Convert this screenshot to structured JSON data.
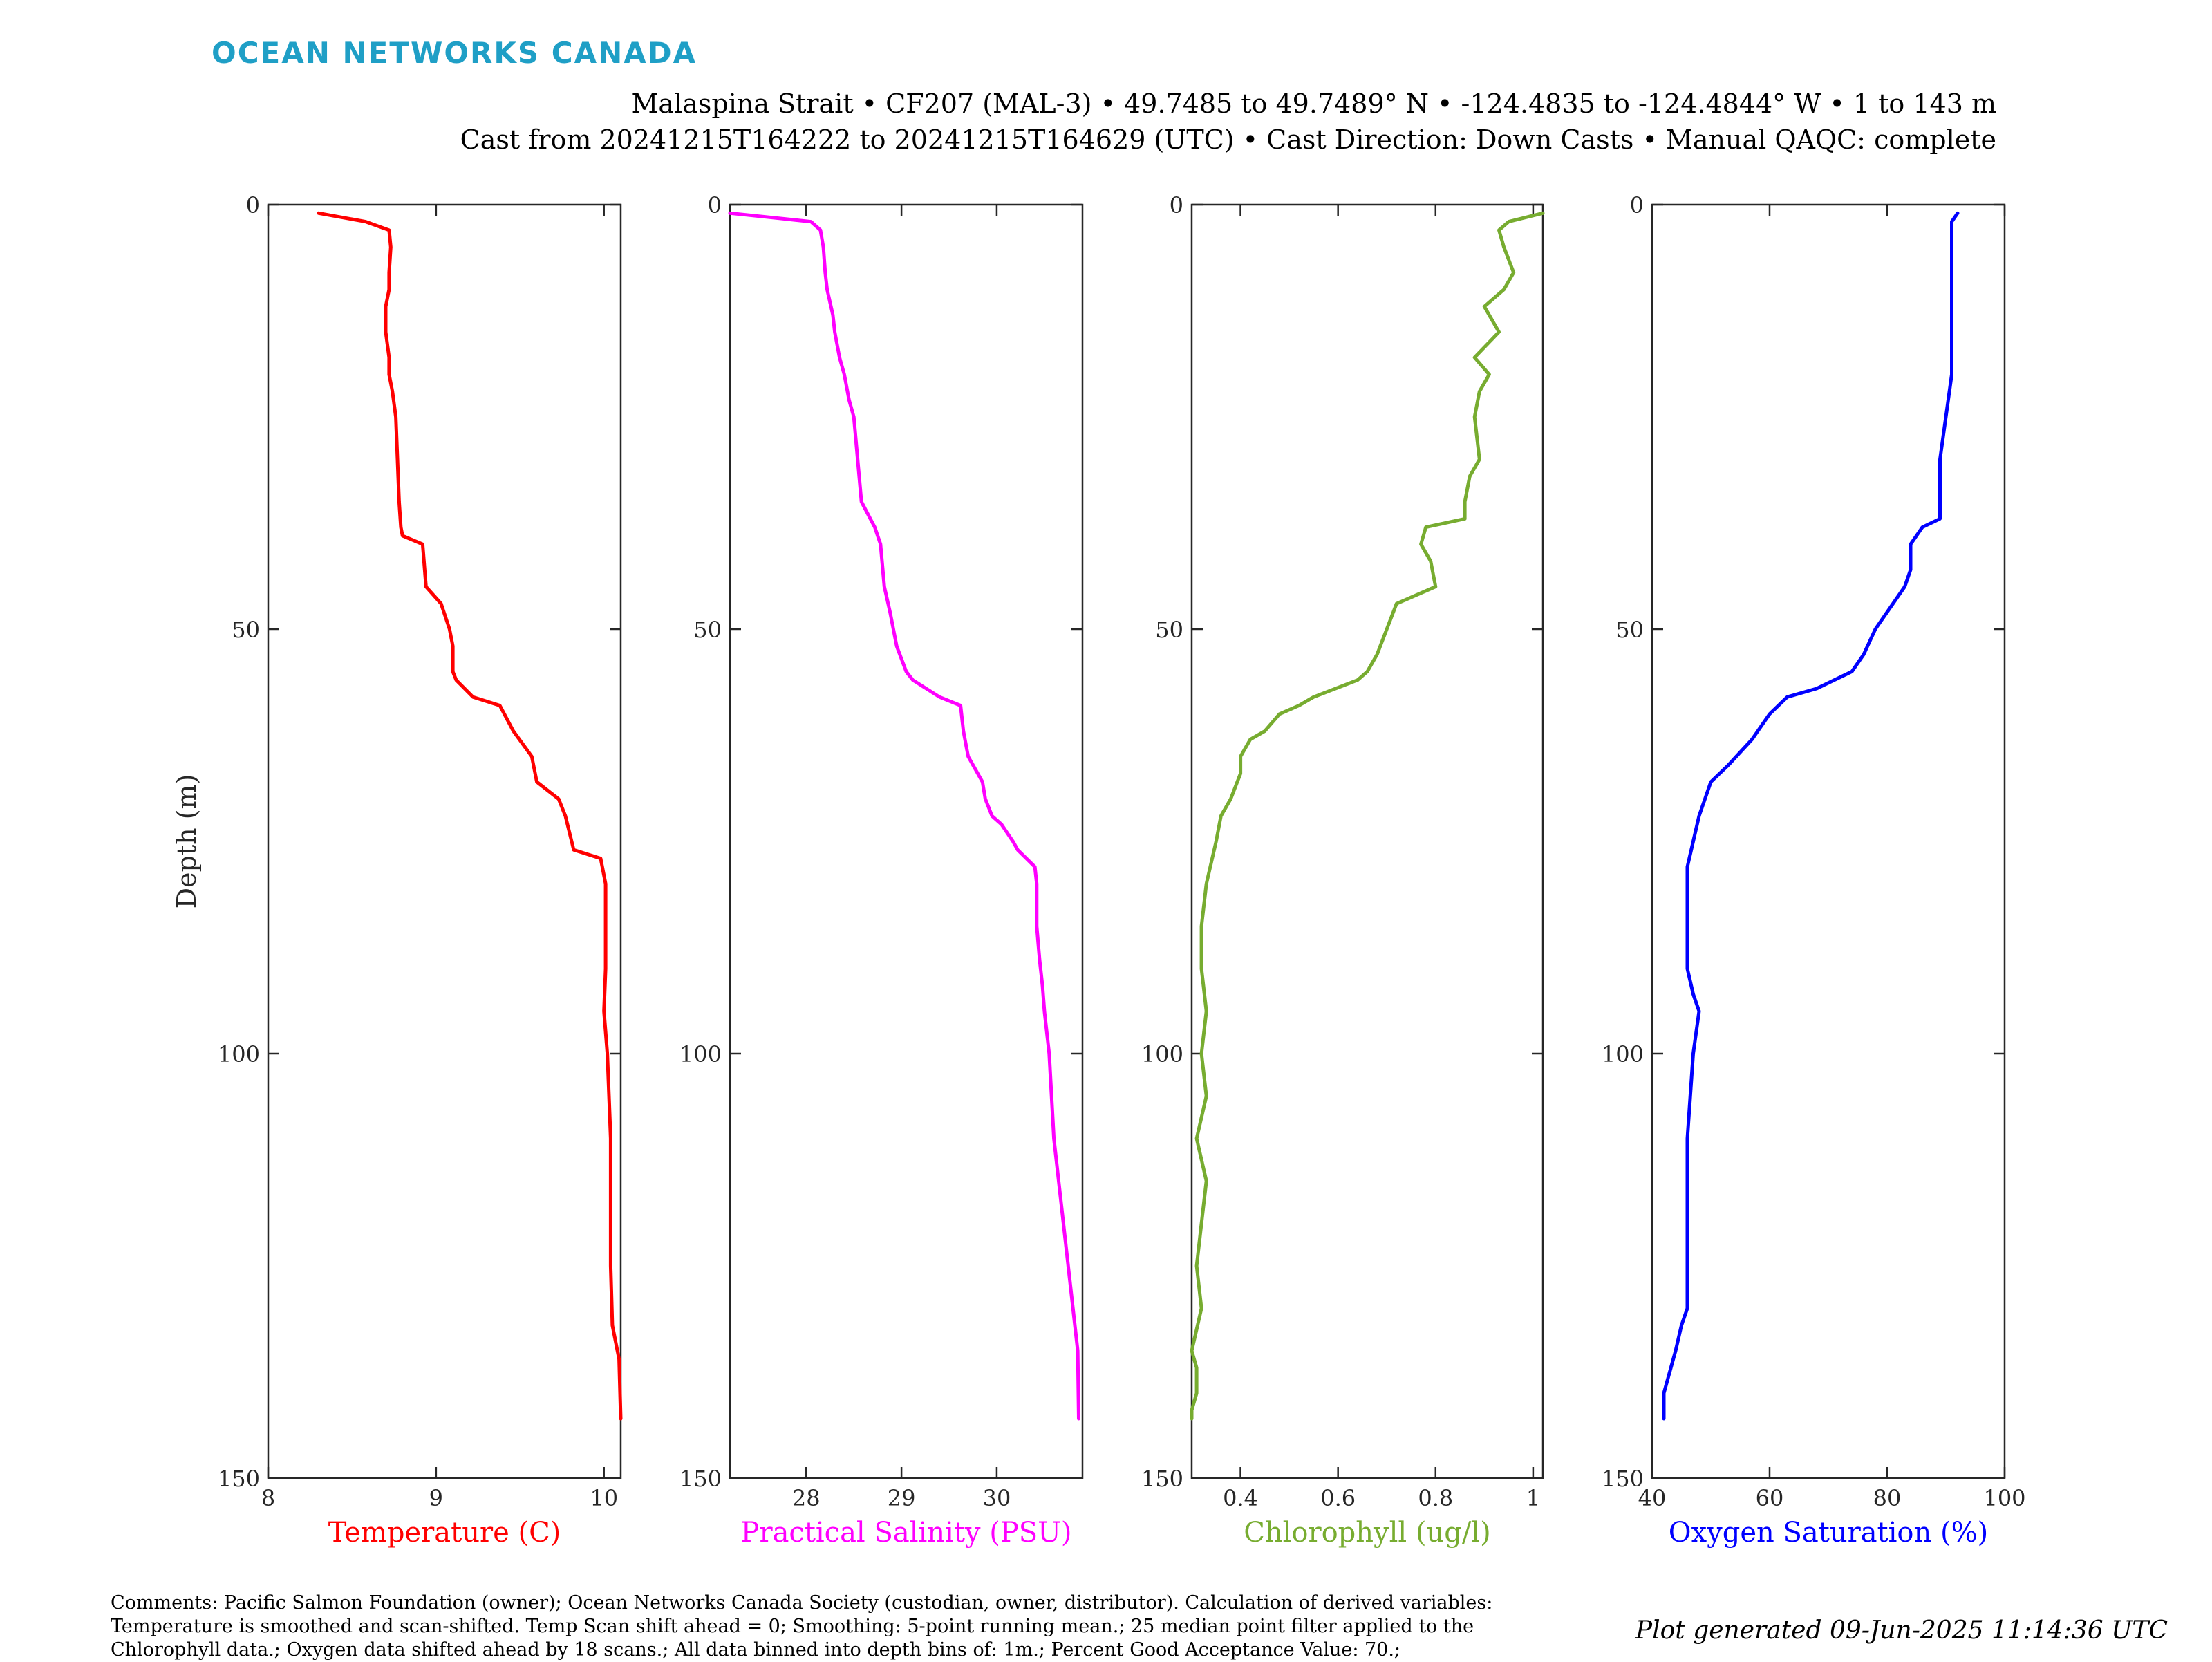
{
  "header": {
    "logo": "OCEAN NETWORKS CANADA",
    "line1": "Malaspina Strait • CF207 (MAL-3) • 49.7485 to 49.7489° N • -124.4835 to -124.4844° W • 1 to 143 m",
    "line2": "Cast from 20241215T164222 to 20241215T164629 (UTC) • Cast Direction: Down Casts • Manual QAQC: complete"
  },
  "footer": {
    "comments": "Comments: Pacific Salmon Foundation (owner); Ocean Networks Canada Society (custodian, owner, distributor). Calculation of derived variables: Temperature is smoothed and scan-shifted. Temp Scan shift ahead = 0; Smoothing: 5-point running mean.; 25 median point filter applied to the Chlorophyll data.; Oxygen data shifted ahead by 18 scans.; All data binned into depth bins of: 1m.; Percent Good Acceptance Value: 70.;",
    "generated": "Plot generated 09-Jun-2025 11:14:36 UTC"
  },
  "chart_data": [
    {
      "type": "line",
      "ylabel": "Depth (m)",
      "xlabel": "Temperature (C)",
      "color": "#ff0000",
      "xlim": [
        8,
        10.1
      ],
      "ylim": [
        0,
        150
      ],
      "y_reversed": true,
      "xticks": [
        8,
        9,
        10
      ],
      "yticks": [
        0,
        50,
        100,
        150
      ],
      "series": [
        {
          "x": [
            8.3,
            8.58,
            8.72,
            8.73,
            8.72,
            8.72,
            8.7,
            8.7,
            8.72,
            8.72,
            8.74,
            8.76,
            8.77,
            8.78,
            8.79,
            8.8,
            8.92,
            8.94,
            9.03,
            9.08,
            9.1,
            9.1,
            9.12,
            9.22,
            9.38,
            9.46,
            9.57,
            9.6,
            9.73,
            9.77,
            9.82,
            9.98,
            10.01,
            10.01,
            10.01,
            10.0,
            10.02,
            10.03,
            10.04,
            10.04,
            10.04,
            10.04,
            10.05,
            10.09,
            10.1
          ],
          "y": [
            1,
            2,
            3,
            5,
            8,
            10,
            12,
            15,
            18,
            20,
            22,
            25,
            30,
            35,
            38,
            39,
            40,
            45,
            47,
            50,
            52,
            55,
            56,
            58,
            59,
            62,
            65,
            68,
            70,
            72,
            76,
            77,
            80,
            85,
            90,
            95,
            100,
            105,
            110,
            115,
            120,
            125,
            132,
            136,
            143
          ]
        }
      ]
    },
    {
      "type": "line",
      "xlabel": "Practical Salinity (PSU)",
      "color": "#ff00ff",
      "xlim": [
        27.2,
        30.9
      ],
      "ylim": [
        0,
        150
      ],
      "y_reversed": true,
      "xticks": [
        28,
        29,
        30
      ],
      "yticks": [
        0,
        50,
        100,
        150
      ],
      "series": [
        {
          "x": [
            27.2,
            28.05,
            28.15,
            28.18,
            28.2,
            28.22,
            28.28,
            28.3,
            28.35,
            28.4,
            28.45,
            28.5,
            28.58,
            28.72,
            28.78,
            28.82,
            28.88,
            28.95,
            29.05,
            29.12,
            29.4,
            29.62,
            29.65,
            29.7,
            29.85,
            29.88,
            29.95,
            30.05,
            30.17,
            30.22,
            30.4,
            30.42,
            30.42,
            30.45,
            30.48,
            30.5,
            30.55,
            30.6,
            30.7,
            30.85,
            30.86
          ],
          "y": [
            1,
            2,
            3,
            5,
            8,
            10,
            13,
            15,
            18,
            20,
            23,
            25,
            35,
            38,
            40,
            45,
            48,
            52,
            55,
            56,
            58,
            59,
            62,
            65,
            68,
            70,
            72,
            73,
            75,
            76,
            78,
            80,
            85,
            89,
            92,
            95,
            100,
            110,
            120,
            135,
            143
          ]
        }
      ]
    },
    {
      "type": "line",
      "xlabel": "Chlorophyll (ug/l)",
      "color": "#77ac30",
      "xlim": [
        0.3,
        1.02
      ],
      "ylim": [
        0,
        150
      ],
      "y_reversed": true,
      "xticks": [
        0.4,
        0.6,
        0.8,
        1
      ],
      "yticks": [
        0,
        50,
        100,
        150
      ],
      "series": [
        {
          "x": [
            1.02,
            0.95,
            0.93,
            0.94,
            0.96,
            0.94,
            0.9,
            0.93,
            0.88,
            0.91,
            0.89,
            0.88,
            0.89,
            0.87,
            0.86,
            0.86,
            0.78,
            0.77,
            0.79,
            0.8,
            0.72,
            0.7,
            0.68,
            0.66,
            0.64,
            0.55,
            0.52,
            0.48,
            0.45,
            0.42,
            0.4,
            0.4,
            0.38,
            0.36,
            0.35,
            0.33,
            0.32,
            0.32,
            0.33,
            0.32,
            0.33,
            0.31,
            0.33,
            0.32,
            0.31,
            0.32,
            0.3,
            0.31,
            0.31,
            0.3,
            0.3
          ],
          "y": [
            1,
            2,
            3,
            5,
            8,
            10,
            12,
            15,
            18,
            20,
            22,
            25,
            30,
            32,
            35,
            37,
            38,
            40,
            42,
            45,
            47,
            50,
            53,
            55,
            56,
            58,
            59,
            60,
            62,
            63,
            65,
            67,
            70,
            72,
            75,
            80,
            85,
            90,
            95,
            100,
            105,
            110,
            115,
            120,
            125,
            130,
            135,
            137,
            140,
            142,
            143
          ]
        }
      ]
    },
    {
      "type": "line",
      "xlabel": "Oxygen Saturation (%)",
      "color": "#0000ff",
      "xlim": [
        40,
        100
      ],
      "ylim": [
        0,
        150
      ],
      "y_reversed": true,
      "xticks": [
        40,
        60,
        80,
        100
      ],
      "yticks": [
        0,
        50,
        100,
        150
      ],
      "series": [
        {
          "x": [
            92,
            91,
            91,
            91,
            91,
            91,
            90,
            89,
            89,
            89,
            86,
            84,
            84,
            83,
            80,
            78,
            76,
            74,
            68,
            63,
            60,
            57,
            53,
            50,
            48,
            47,
            46,
            46,
            46,
            46,
            47,
            48,
            47,
            46,
            46,
            46,
            46,
            45,
            44,
            42,
            42
          ],
          "y": [
            1,
            2,
            5,
            10,
            15,
            20,
            25,
            30,
            35,
            37,
            38,
            40,
            43,
            45,
            48,
            50,
            53,
            55,
            57,
            58,
            60,
            63,
            66,
            68,
            72,
            75,
            78,
            85,
            88,
            90,
            93,
            95,
            100,
            110,
            120,
            125,
            130,
            132,
            135,
            140,
            143
          ]
        }
      ]
    }
  ]
}
